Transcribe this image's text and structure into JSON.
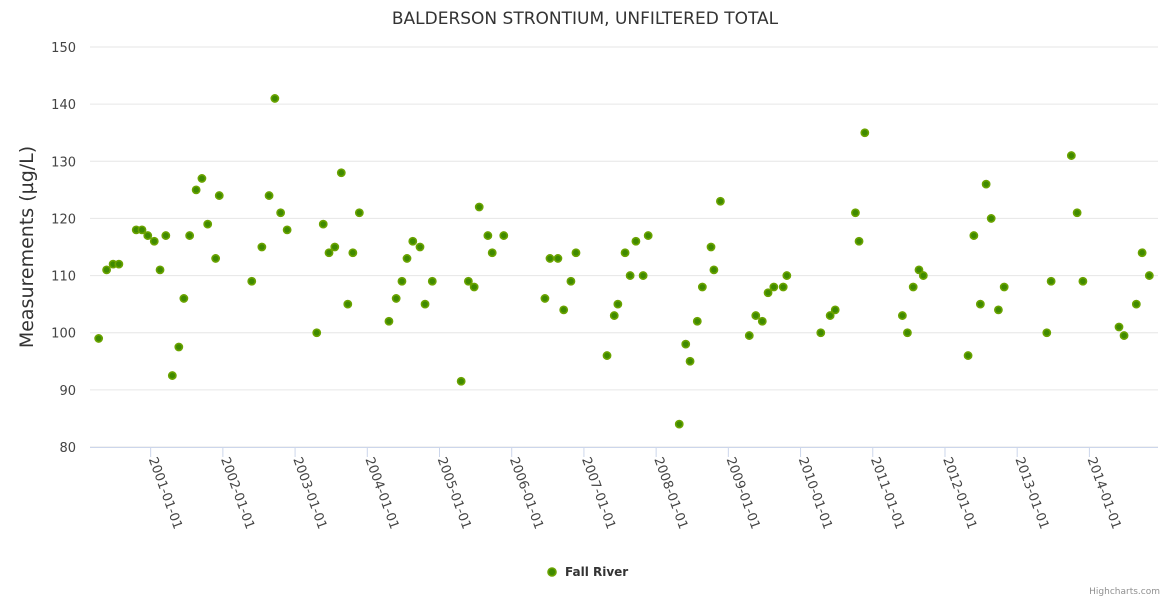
{
  "chart_data": {
    "type": "scatter",
    "title": "BALDERSON STRONTIUM, UNFILTERED TOTAL",
    "xlabel": "",
    "ylabel": "Measurements (µg/L)",
    "ylim": [
      80,
      150
    ],
    "yticks": [
      80,
      90,
      100,
      110,
      120,
      130,
      140,
      150
    ],
    "xlim": [
      2000.16,
      2014.95
    ],
    "xticks": [
      {
        "value": 2001,
        "label": "2001-01-01"
      },
      {
        "value": 2002,
        "label": "2002-01-01"
      },
      {
        "value": 2003,
        "label": "2003-01-01"
      },
      {
        "value": 2004,
        "label": "2004-01-01"
      },
      {
        "value": 2005,
        "label": "2005-01-01"
      },
      {
        "value": 2006,
        "label": "2006-01-01"
      },
      {
        "value": 2007,
        "label": "2007-01-01"
      },
      {
        "value": 2008,
        "label": "2008-01-01"
      },
      {
        "value": 2009,
        "label": "2009-01-01"
      },
      {
        "value": 2010,
        "label": "2010-01-01"
      },
      {
        "value": 2011,
        "label": "2011-01-01"
      },
      {
        "value": 2012,
        "label": "2012-01-01"
      },
      {
        "value": 2013,
        "label": "2013-01-01"
      },
      {
        "value": 2014,
        "label": "2014-01-01"
      }
    ],
    "grid": true,
    "legend_position": "bottom-center",
    "series": [
      {
        "name": "Fall River",
        "color": "#6aa300",
        "points": [
          [
            2000.28,
            99
          ],
          [
            2000.39,
            111
          ],
          [
            2000.48,
            112
          ],
          [
            2000.56,
            112
          ],
          [
            2000.8,
            118
          ],
          [
            2000.88,
            118
          ],
          [
            2000.96,
            117
          ],
          [
            2001.05,
            116
          ],
          [
            2001.13,
            111
          ],
          [
            2001.21,
            117
          ],
          [
            2001.3,
            92.5
          ],
          [
            2001.39,
            97.5
          ],
          [
            2001.46,
            106
          ],
          [
            2001.54,
            117
          ],
          [
            2001.63,
            125
          ],
          [
            2001.71,
            127
          ],
          [
            2001.79,
            119
          ],
          [
            2001.9,
            113
          ],
          [
            2001.95,
            124
          ],
          [
            2002.4,
            109
          ],
          [
            2002.54,
            115
          ],
          [
            2002.64,
            124
          ],
          [
            2002.72,
            141
          ],
          [
            2002.8,
            121
          ],
          [
            2002.89,
            118
          ],
          [
            2003.3,
            100
          ],
          [
            2003.39,
            119
          ],
          [
            2003.47,
            114
          ],
          [
            2003.55,
            115
          ],
          [
            2003.64,
            128
          ],
          [
            2003.73,
            105
          ],
          [
            2003.8,
            114
          ],
          [
            2003.89,
            121
          ],
          [
            2004.3,
            102
          ],
          [
            2004.4,
            106
          ],
          [
            2004.48,
            109
          ],
          [
            2004.55,
            113
          ],
          [
            2004.63,
            116
          ],
          [
            2004.73,
            115
          ],
          [
            2004.8,
            105
          ],
          [
            2004.9,
            109
          ],
          [
            2005.3,
            91.5
          ],
          [
            2005.4,
            109
          ],
          [
            2005.48,
            108
          ],
          [
            2005.55,
            122
          ],
          [
            2005.67,
            117
          ],
          [
            2005.73,
            114
          ],
          [
            2005.89,
            117
          ],
          [
            2006.46,
            106
          ],
          [
            2006.53,
            113
          ],
          [
            2006.64,
            113
          ],
          [
            2006.72,
            104
          ],
          [
            2006.82,
            109
          ],
          [
            2006.89,
            114
          ],
          [
            2007.32,
            96
          ],
          [
            2007.42,
            103
          ],
          [
            2007.47,
            105
          ],
          [
            2007.57,
            114
          ],
          [
            2007.64,
            110
          ],
          [
            2007.72,
            116
          ],
          [
            2007.82,
            110
          ],
          [
            2007.89,
            117
          ],
          [
            2008.32,
            84
          ],
          [
            2008.41,
            98
          ],
          [
            2008.47,
            95
          ],
          [
            2008.57,
            102
          ],
          [
            2008.64,
            108
          ],
          [
            2008.76,
            115
          ],
          [
            2008.8,
            111
          ],
          [
            2008.89,
            123
          ],
          [
            2009.29,
            99.5
          ],
          [
            2009.38,
            103
          ],
          [
            2009.47,
            102
          ],
          [
            2009.55,
            107
          ],
          [
            2009.63,
            108
          ],
          [
            2009.76,
            108
          ],
          [
            2009.81,
            110
          ],
          [
            2010.28,
            100
          ],
          [
            2010.41,
            103
          ],
          [
            2010.48,
            104
          ],
          [
            2010.76,
            121
          ],
          [
            2010.81,
            116
          ],
          [
            2010.89,
            135
          ],
          [
            2011.41,
            103
          ],
          [
            2011.48,
            100
          ],
          [
            2011.56,
            108
          ],
          [
            2011.64,
            111
          ],
          [
            2011.7,
            110
          ],
          [
            2012.32,
            96
          ],
          [
            2012.4,
            117
          ],
          [
            2012.49,
            105
          ],
          [
            2012.57,
            126
          ],
          [
            2012.64,
            120
          ],
          [
            2012.74,
            104
          ],
          [
            2012.82,
            108
          ],
          [
            2013.41,
            100
          ],
          [
            2013.47,
            109
          ],
          [
            2013.75,
            131
          ],
          [
            2013.83,
            121
          ],
          [
            2013.91,
            109
          ],
          [
            2014.41,
            101
          ],
          [
            2014.48,
            99.5
          ],
          [
            2014.65,
            105
          ],
          [
            2014.73,
            114
          ],
          [
            2014.83,
            110
          ]
        ]
      }
    ]
  },
  "credit": "Highcharts.com"
}
